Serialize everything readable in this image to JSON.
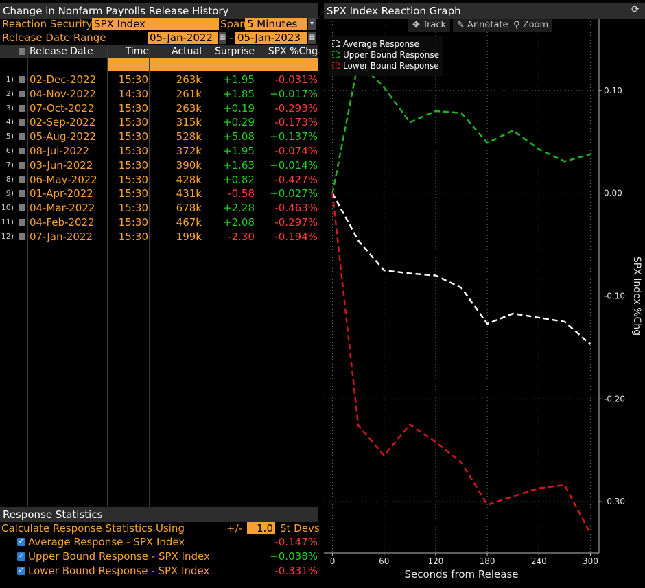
{
  "left_panel": {
    "title": "Change in Nonfarm Payrolls Release History",
    "reaction_security_label": "Reaction Security",
    "reaction_security_value": "SPX Index",
    "span_label": "Span",
    "span_value": "5 Minutes",
    "release_range_label": "Release Date Range",
    "date_from": "05-Jan-2022",
    "date_sep": "-",
    "date_to": "05-Jan-2023",
    "columns": [
      "Release Date",
      "Time",
      "Actual",
      "Surprise",
      "SPX %Chg"
    ],
    "rows": [
      {
        "n": "1)",
        "date": "02-Dec-2022",
        "time": "15:30",
        "actual": "263k",
        "surprise": "+1.95",
        "chg": "-0.031%"
      },
      {
        "n": "2)",
        "date": "04-Nov-2022",
        "time": "14:30",
        "actual": "261k",
        "surprise": "+1.85",
        "chg": "+0.017%"
      },
      {
        "n": "3)",
        "date": "07-Oct-2022",
        "time": "15:30",
        "actual": "263k",
        "surprise": "+0.19",
        "chg": "-0.293%"
      },
      {
        "n": "4)",
        "date": "02-Sep-2022",
        "time": "15:30",
        "actual": "315k",
        "surprise": "+0.29",
        "chg": "-0.173%"
      },
      {
        "n": "5)",
        "date": "05-Aug-2022",
        "time": "15:30",
        "actual": "528k",
        "surprise": "+5.08",
        "chg": "+0.137%"
      },
      {
        "n": "6)",
        "date": "08-Jul-2022",
        "time": "15:30",
        "actual": "372k",
        "surprise": "+1.95",
        "chg": "-0.074%"
      },
      {
        "n": "7)",
        "date": "03-Jun-2022",
        "time": "15:30",
        "actual": "390k",
        "surprise": "+1.63",
        "chg": "+0.014%"
      },
      {
        "n": "8)",
        "date": "06-May-2022",
        "time": "15:30",
        "actual": "428k",
        "surprise": "+0.82",
        "chg": "-0.427%"
      },
      {
        "n": "9)",
        "date": "01-Apr-2022",
        "time": "15:30",
        "actual": "431k",
        "surprise": "-0.58",
        "chg": "+0.027%"
      },
      {
        "n": "10)",
        "date": "04-Mar-2022",
        "time": "15:30",
        "actual": "678k",
        "surprise": "+2.28",
        "chg": "-0.463%"
      },
      {
        "n": "11)",
        "date": "04-Feb-2022",
        "time": "15:30",
        "actual": "467k",
        "surprise": "+2.08",
        "chg": "-0.297%"
      },
      {
        "n": "12)",
        "date": "07-Jan-2022",
        "time": "15:30",
        "actual": "199k",
        "surprise": "-2.30",
        "chg": "-0.194%"
      }
    ]
  },
  "stats": {
    "title": "Response Statistics",
    "calc_label": "Calculate Response Statistics Using",
    "pm_label": "+/-",
    "stdev_value": "1.0",
    "stdev_label": "St Devs",
    "items": [
      {
        "label": "Average Response - SPX Index",
        "value": "-0.147%"
      },
      {
        "label": "Upper Bound Response - SPX Index",
        "value": "+0.038%"
      },
      {
        "label": "Lower Bound Response - SPX Index",
        "value": "-0.331%"
      }
    ]
  },
  "right_panel": {
    "title": "SPX Index Reaction Graph",
    "tools": {
      "track": "Track",
      "annotate": "Annotate",
      "zoom": "Zoom"
    }
  },
  "colors": {
    "orange": "#f7a035",
    "green": "#1fd11f",
    "red": "#ff3b3b",
    "white": "#ffffff",
    "up_line": "#1fb41f",
    "low_line": "#d41818"
  },
  "chart_data": {
    "type": "line",
    "xlabel": "Seconds from Release",
    "ylabel": "SPX Index %Chg",
    "xlim": [
      -10,
      310
    ],
    "ylim": [
      -0.35,
      0.17
    ],
    "xticks": [
      0,
      60,
      120,
      180,
      240,
      300
    ],
    "yticks": [
      0.1,
      0.0,
      -0.1,
      -0.2,
      -0.3
    ],
    "ytick_labels": [
      "0.10",
      "0.00",
      "-0.10",
      "-0.20",
      "-0.30"
    ],
    "legend_position": "top-left",
    "grid": true,
    "x": [
      0,
      30,
      60,
      90,
      120,
      150,
      180,
      210,
      240,
      270,
      300
    ],
    "series": [
      {
        "name": "Average Response",
        "color": "#ffffff",
        "values": [
          0.0,
          -0.046,
          -0.075,
          -0.078,
          -0.08,
          -0.092,
          -0.127,
          -0.117,
          -0.121,
          -0.125,
          -0.147
        ]
      },
      {
        "name": "Upper Bound Response",
        "color": "#1fb41f",
        "values": [
          0.0,
          0.128,
          0.103,
          0.069,
          0.08,
          0.078,
          0.049,
          0.061,
          0.043,
          0.031,
          0.038
        ]
      },
      {
        "name": "Lower Bound Response",
        "color": "#d41818",
        "values": [
          0.0,
          -0.226,
          -0.255,
          -0.225,
          -0.242,
          -0.262,
          -0.303,
          -0.295,
          -0.287,
          -0.284,
          -0.331
        ]
      }
    ]
  }
}
